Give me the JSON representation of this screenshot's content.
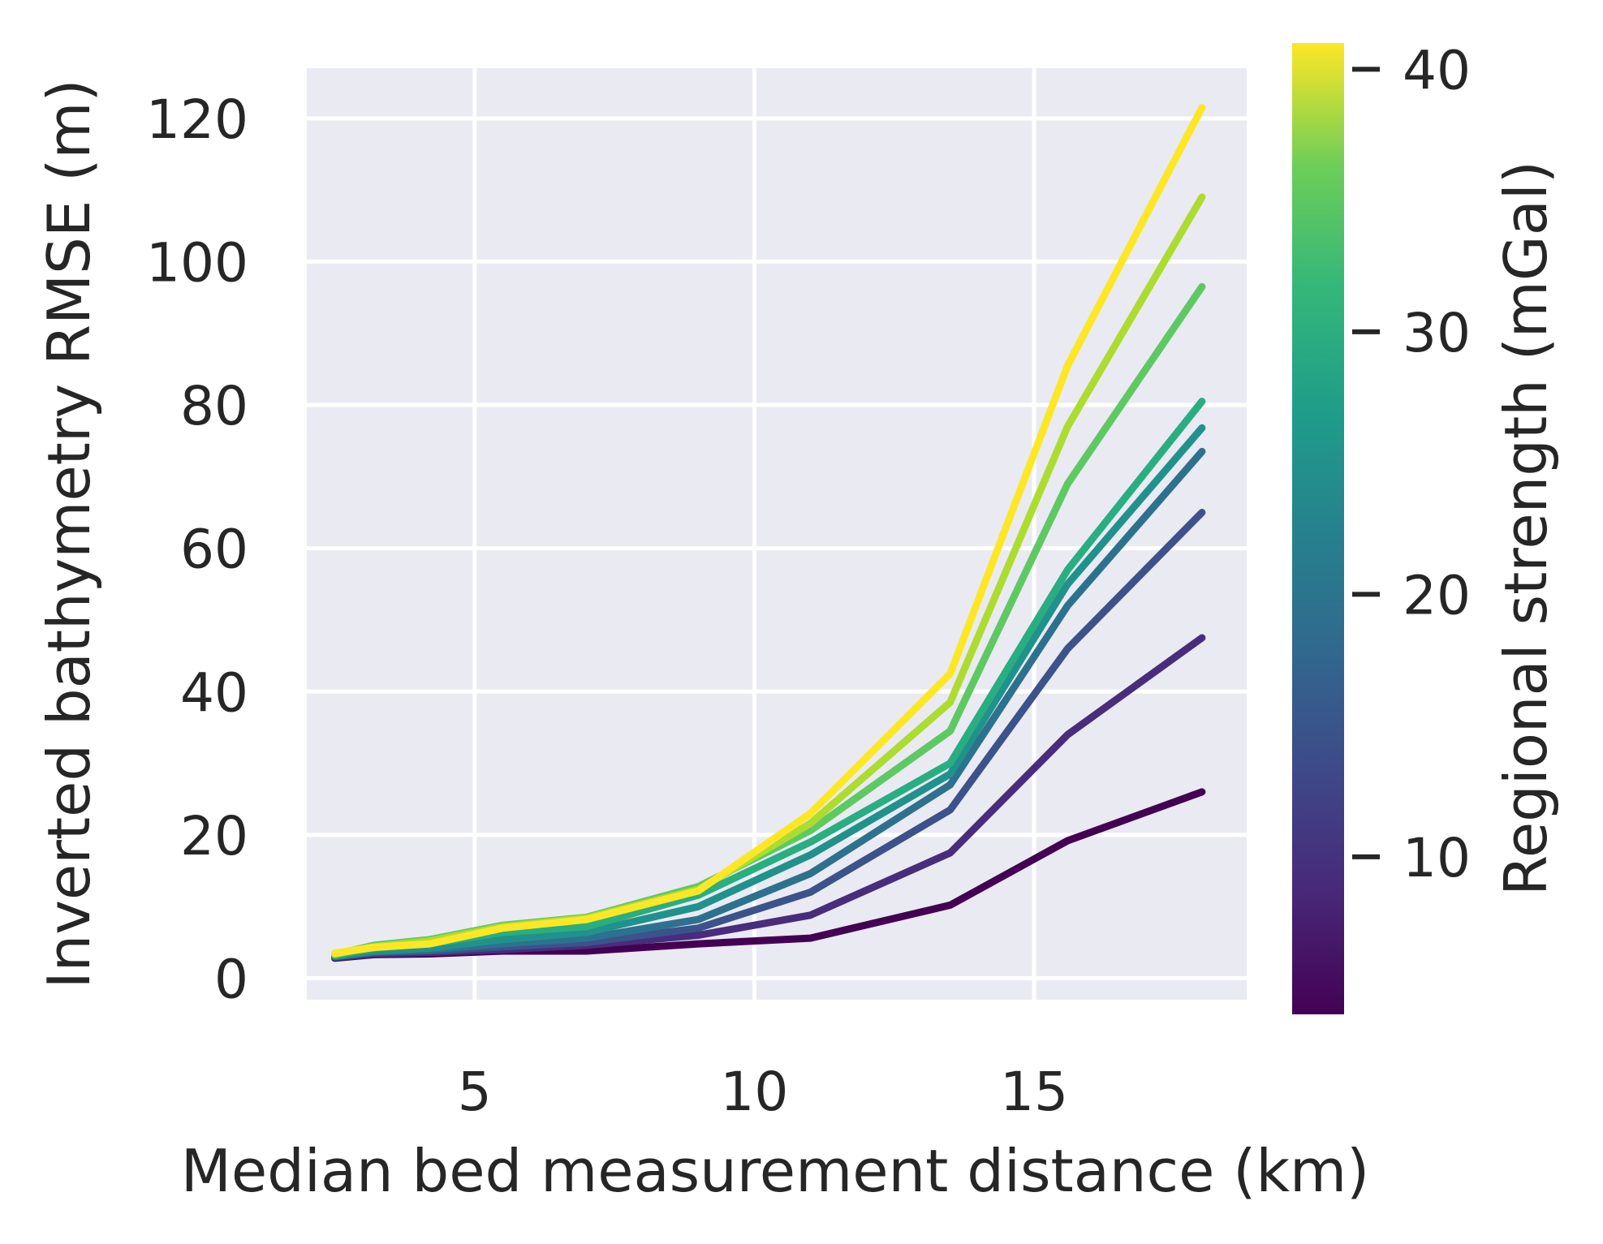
{
  "chart_data": {
    "type": "line",
    "title": "",
    "xlabel": "Median bed measurement distance (km)",
    "ylabel": "Inverted bathymetry RMSE (m)",
    "xlim": [
      2.0,
      18.8
    ],
    "ylim": [
      -3,
      127
    ],
    "xticks": [
      5,
      10,
      15
    ],
    "yticks": [
      0,
      20,
      40,
      60,
      80,
      100,
      120
    ],
    "grid": true,
    "x": [
      2.5,
      3.2,
      4.2,
      5.5,
      7.0,
      9.0,
      11.0,
      13.5,
      15.6,
      18.0
    ],
    "series": [
      {
        "color": "#440154",
        "values": [
          2.8,
          3.3,
          3.4,
          3.8,
          3.8,
          4.8,
          5.6,
          10.2,
          19.2,
          26.0
        ]
      },
      {
        "color": "#472d7b",
        "values": [
          2.9,
          3.4,
          3.6,
          4.0,
          4.6,
          6.0,
          8.8,
          17.5,
          34.0,
          47.5
        ]
      },
      {
        "color": "#3b528b",
        "values": [
          3.0,
          3.6,
          3.8,
          4.4,
          5.0,
          7.0,
          12.0,
          23.5,
          46.0,
          65.0
        ]
      },
      {
        "color": "#2c728e",
        "values": [
          3.0,
          3.7,
          4.0,
          4.8,
          5.6,
          8.2,
          14.6,
          27.0,
          52.0,
          73.5
        ]
      },
      {
        "color": "#21918c",
        "values": [
          3.1,
          3.8,
          4.2,
          5.4,
          6.4,
          10.0,
          17.2,
          28.5,
          55.0,
          76.8
        ]
      },
      {
        "color": "#28ae80",
        "values": [
          3.2,
          4.2,
          4.8,
          6.4,
          7.2,
          11.6,
          19.0,
          30.0,
          57.0,
          80.5
        ]
      },
      {
        "color": "#5ec962",
        "values": [
          3.3,
          4.6,
          5.4,
          7.4,
          8.5,
          12.8,
          20.6,
          34.5,
          69.0,
          96.5
        ]
      },
      {
        "color": "#addc30",
        "values": [
          3.4,
          4.4,
          5.2,
          7.2,
          8.4,
          12.4,
          21.6,
          38.5,
          77.0,
          109.0
        ]
      },
      {
        "color": "#fde725",
        "values": [
          3.5,
          4.3,
          4.8,
          7.0,
          8.2,
          12.2,
          23.0,
          42.5,
          85.5,
          121.5
        ]
      }
    ],
    "colorbar": {
      "label": "Regional strength (mGal)",
      "range": [
        4,
        41
      ],
      "ticks": [
        10,
        20,
        30,
        40
      ],
      "colormap": "viridis"
    }
  }
}
